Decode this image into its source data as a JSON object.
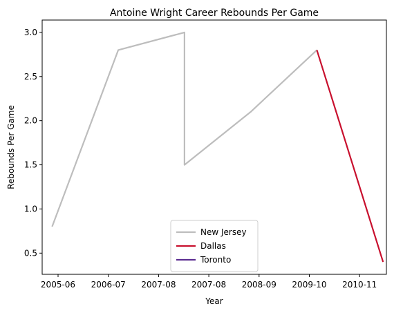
{
  "chart_data": {
    "type": "line",
    "title": "Antoine Wright  Career Rebounds Per Game",
    "xlabel": "Year",
    "ylabel": "Rebounds Per Game",
    "x_ticks": [
      "2005-06",
      "2006-07",
      "2007-08",
      "2007-08",
      "2008-09",
      "2009-10",
      "2010-11"
    ],
    "xlim": [
      -0.15,
      5.05
    ],
    "ylim": [
      0.26,
      3.14
    ],
    "y_ticks": [
      0.5,
      1.0,
      1.5,
      2.0,
      2.5,
      3.0
    ],
    "y_tick_labels": [
      "0.5",
      "1.0",
      "1.5",
      "2.0",
      "2.5",
      "3.0"
    ],
    "grid": false,
    "legend_position": "lower-center",
    "series": [
      {
        "name": "New Jersey",
        "color": "#bdbdbd",
        "x": [
          0,
          1,
          2,
          2,
          3,
          4
        ],
        "y": [
          0.8,
          2.8,
          3.0,
          1.5,
          2.1,
          2.8
        ]
      },
      {
        "name": "Dallas",
        "color": "#c8102e",
        "x": [
          4,
          5
        ],
        "y": [
          2.8,
          0.4
        ]
      },
      {
        "name": "Toronto",
        "color": "#5c2d91",
        "x": [],
        "y": []
      }
    ]
  }
}
